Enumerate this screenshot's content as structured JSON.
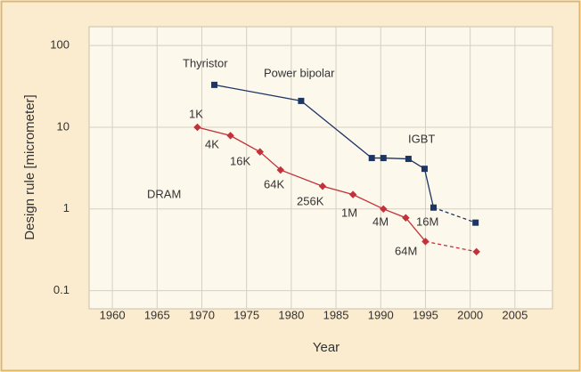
{
  "chart_data": {
    "type": "line",
    "xlabel": "Year",
    "ylabel": "Design rule [micrometer]",
    "xlim": [
      1957.4,
      2009.2
    ],
    "xticks": [
      1960,
      1965,
      1970,
      1975,
      1980,
      1985,
      1990,
      1995,
      2000,
      2005
    ],
    "ylim": [
      0.06,
      170
    ],
    "yticks": [
      100,
      10,
      1,
      0.1
    ],
    "log_y": true,
    "grid": true,
    "dashed_last_segment": true,
    "series": [
      {
        "color": "#1d3563",
        "marker": "square",
        "x": [
          1971.4,
          1981.1,
          1989.0,
          1990.3,
          1993.1,
          1994.9,
          1995.9,
          2000.6
        ],
        "values": [
          33,
          21,
          4.2,
          4.2,
          4.1,
          3.1,
          1.04,
          0.68
        ]
      },
      {
        "color": "#c1323a",
        "marker": "diamond",
        "x": [
          1969.5,
          1973.2,
          1976.5,
          1978.8,
          1983.5,
          1986.9,
          1990.3,
          1992.8,
          1995.0,
          2000.7
        ],
        "values": [
          10,
          7.9,
          5,
          3,
          1.9,
          1.5,
          1.0,
          0.78,
          0.4,
          0.3
        ]
      }
    ],
    "annotations": [
      "Thyristor",
      "Power bipolar",
      "IGBT",
      "DRAM",
      "1K",
      "4K",
      "16K",
      "64K",
      "256K",
      "1M",
      "4M",
      "16M",
      "64M"
    ]
  }
}
